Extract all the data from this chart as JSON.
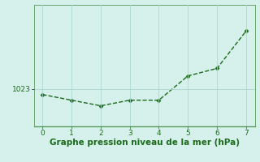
{
  "x": [
    0,
    1,
    2,
    3,
    4,
    5,
    6,
    7
  ],
  "y": [
    1022.7,
    1022.4,
    1022.1,
    1022.4,
    1022.4,
    1023.7,
    1024.1,
    1026.1
  ],
  "line_color": "#1a6b1a",
  "marker": "D",
  "marker_size": 2.5,
  "linewidth": 1.0,
  "linestyle": "--",
  "background_color": "#d6f0ec",
  "grid_color": "#aad8d3",
  "xlabel": "Graphe pression niveau de la mer (hPa)",
  "xlabel_fontsize": 7.5,
  "ytick_label": "1023",
  "ytick_value": 1023.0,
  "ylim": [
    1021.0,
    1027.5
  ],
  "xlim": [
    -0.3,
    7.3
  ],
  "xticks": [
    0,
    1,
    2,
    3,
    4,
    5,
    6,
    7
  ],
  "tick_color": "#1a6b1a",
  "tick_fontsize": 6.5,
  "spine_color": "#5a9a5a",
  "xlabel_color": "#1a6b1a"
}
